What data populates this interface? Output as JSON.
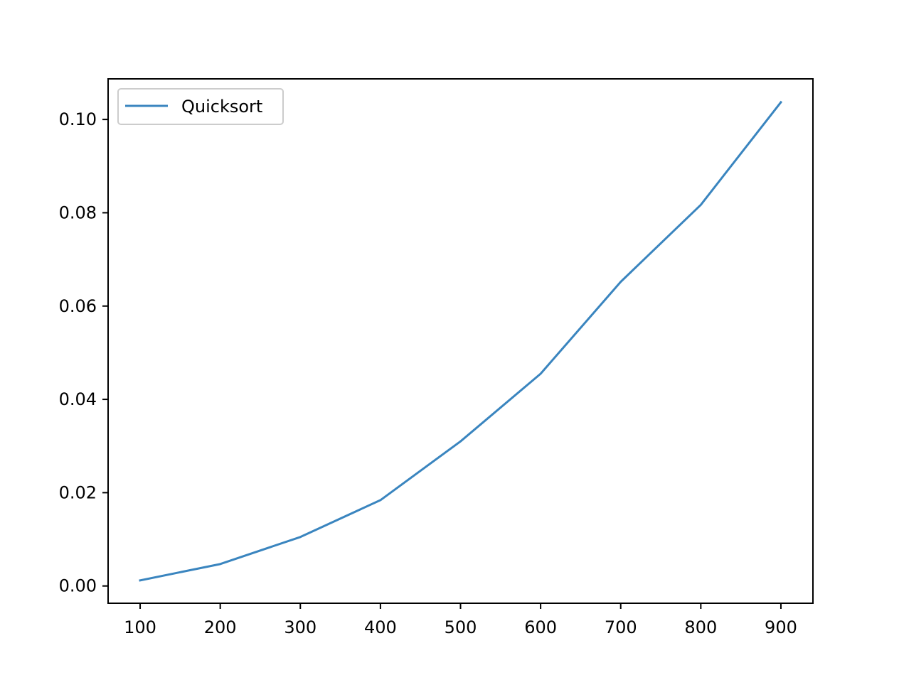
{
  "chart_data": {
    "type": "line",
    "title": "",
    "xlabel": "",
    "ylabel": "",
    "x": [
      100,
      200,
      300,
      400,
      500,
      600,
      700,
      800,
      900
    ],
    "series": [
      {
        "name": "Quicksort",
        "color": "#3a85bf",
        "values": [
          0.0012,
          0.0047,
          0.0105,
          0.0184,
          0.031,
          0.0455,
          0.0652,
          0.0817,
          0.1037
        ]
      }
    ],
    "xlim": [
      60,
      940
    ],
    "ylim": [
      -0.0037,
      0.1087
    ],
    "xticks": [
      100,
      200,
      300,
      400,
      500,
      600,
      700,
      800,
      900
    ],
    "xtick_labels": [
      "100",
      "200",
      "300",
      "400",
      "500",
      "600",
      "700",
      "800",
      "900"
    ],
    "yticks": [
      0.0,
      0.02,
      0.04,
      0.06,
      0.08,
      0.1
    ],
    "ytick_labels": [
      "0.00",
      "0.02",
      "0.04",
      "0.06",
      "0.08",
      "0.10"
    ],
    "grid": false,
    "legend_position": "upper left"
  }
}
